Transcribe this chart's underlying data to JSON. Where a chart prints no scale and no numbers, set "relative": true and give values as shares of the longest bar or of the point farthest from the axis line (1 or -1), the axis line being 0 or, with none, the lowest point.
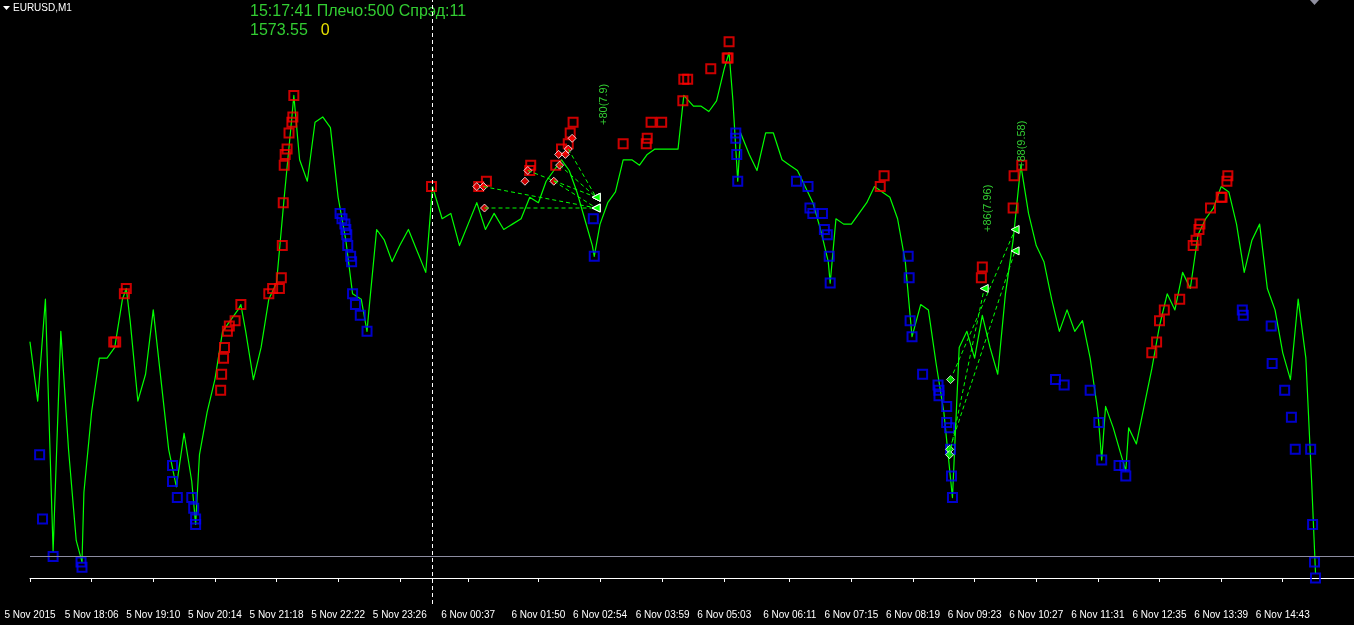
{
  "chart_data": {
    "type": "line",
    "title": "EURUSD,M1",
    "annotations": [
      "15:17:41 Плечо:500 Спрэд:11",
      "1573.55",
      "0",
      "+80(7.9)",
      "+86(7.96)",
      "+88(9.58)"
    ],
    "relative": true,
    "xlim": [
      "2015-11-05T17:02",
      "2015-11-06T15:57"
    ],
    "xticks": [
      {
        "value": "2015-11-05T17:02",
        "label": "5 Nov 2015"
      },
      {
        "value": "2015-11-05T18:06",
        "label": "5 Nov 18:06"
      },
      {
        "value": "2015-11-05T19:10",
        "label": "5 Nov 19:10"
      },
      {
        "value": "2015-11-05T20:14",
        "label": "5 Nov 20:14"
      },
      {
        "value": "2015-11-05T21:18",
        "label": "5 Nov 21:18"
      },
      {
        "value": "2015-11-05T22:22",
        "label": "5 Nov 22:22"
      },
      {
        "value": "2015-11-05T23:26",
        "label": "5 Nov 23:26"
      },
      {
        "value": "2015-11-06T00:37",
        "label": "6 Nov 00:37"
      },
      {
        "value": "2015-11-06T01:50",
        "label": "6 Nov 01:50"
      },
      {
        "value": "2015-11-06T02:54",
        "label": "6 Nov 02:54"
      },
      {
        "value": "2015-11-06T03:59",
        "label": "6 Nov 03:59"
      },
      {
        "value": "2015-11-06T05:03",
        "label": "6 Nov 05:03"
      },
      {
        "value": "2015-11-06T06:11",
        "label": "6 Nov 06:11"
      },
      {
        "value": "2015-11-06T07:15",
        "label": "6 Nov 07:15"
      },
      {
        "value": "2015-11-06T08:19",
        "label": "6 Nov 08:19"
      },
      {
        "value": "2015-11-06T09:23",
        "label": "6 Nov 09:23"
      },
      {
        "value": "2015-11-06T10:27",
        "label": "6 Nov 10:27"
      },
      {
        "value": "2015-11-06T11:31",
        "label": "6 Nov 11:31"
      },
      {
        "value": "2015-11-06T12:35",
        "label": "6 Nov 12:35"
      },
      {
        "value": "2015-11-06T13:39",
        "label": "6 Nov 13:39"
      },
      {
        "value": "2015-11-06T14:43",
        "label": "6 Nov 14:43"
      }
    ],
    "ref_lines": [
      {
        "axis": "x",
        "value": "2015-11-06T00:00",
        "color": "#ffffff",
        "line_style": "dashed"
      },
      {
        "axis": "y",
        "value": 0.04,
        "color": "#8c8ca0",
        "line_style": "solid"
      }
    ],
    "series": [
      {
        "color": "#00ff00",
        "marker": "none",
        "line_style": "solid",
        "x": [
          "2015-11-05T17:02",
          "2015-11-05T17:10",
          "2015-11-05T17:18",
          "2015-11-05T17:26",
          "2015-11-05T17:34",
          "2015-11-05T17:42",
          "2015-11-05T17:50",
          "2015-11-05T17:56",
          "2015-11-05T17:58",
          "2015-11-05T18:06",
          "2015-11-05T18:14",
          "2015-11-05T18:22",
          "2015-11-05T18:30",
          "2015-11-05T18:38",
          "2015-11-05T18:42",
          "2015-11-05T18:46",
          "2015-11-05T18:54",
          "2015-11-05T19:02",
          "2015-11-05T19:10",
          "2015-11-05T19:18",
          "2015-11-05T19:26",
          "2015-11-05T19:34",
          "2015-11-05T19:42",
          "2015-11-05T19:50",
          "2015-11-05T19:54",
          "2015-11-05T19:58",
          "2015-11-05T20:06",
          "2015-11-05T20:14",
          "2015-11-05T20:22",
          "2015-11-05T20:30",
          "2015-11-05T20:38",
          "2015-11-05T20:41",
          "2015-11-05T20:46",
          "2015-11-05T20:54",
          "2015-11-05T21:02",
          "2015-11-05T21:10",
          "2015-11-05T21:18",
          "2015-11-05T21:26",
          "2015-11-05T21:34",
          "2015-11-05T21:36",
          "2015-11-05T21:42",
          "2015-11-05T21:50",
          "2015-11-05T21:58",
          "2015-11-05T22:06",
          "2015-11-05T22:14",
          "2015-11-05T22:22",
          "2015-11-05T22:30",
          "2015-11-05T22:37",
          "2015-11-05T22:46",
          "2015-11-05T22:52",
          "2015-11-05T22:54",
          "2015-11-05T23:02",
          "2015-11-05T23:10",
          "2015-11-05T23:18",
          "2015-11-05T23:26",
          "2015-11-05T23:35",
          "2015-11-05T23:44",
          "2015-11-05T23:53",
          "2015-11-06T00:00",
          "2015-11-06T00:10",
          "2015-11-06T00:19",
          "2015-11-06T00:28",
          "2015-11-06T00:37",
          "2015-11-06T00:46",
          "2015-11-06T00:55",
          "2015-11-06T01:04",
          "2015-11-06T01:14",
          "2015-11-06T01:23",
          "2015-11-06T01:32",
          "2015-11-06T01:41",
          "2015-11-06T01:50",
          "2015-11-06T01:58",
          "2015-11-06T02:06",
          "2015-11-06T02:14",
          "2015-11-06T02:22",
          "2015-11-06T02:30",
          "2015-11-06T02:38",
          "2015-11-06T02:46",
          "2015-11-06T02:48",
          "2015-11-06T02:54",
          "2015-11-06T03:02",
          "2015-11-06T03:10",
          "2015-11-06T03:18",
          "2015-11-06T03:27",
          "2015-11-06T03:35",
          "2015-11-06T03:43",
          "2015-11-06T03:51",
          "2015-11-06T03:59",
          "2015-11-06T04:07",
          "2015-11-06T04:15",
          "2015-11-06T04:21",
          "2015-11-06T04:31",
          "2015-11-06T04:39",
          "2015-11-06T04:47",
          "2015-11-06T04:55",
          "2015-11-06T05:03",
          "2015-11-06T05:08",
          "2015-11-06T05:12",
          "2015-11-06T05:17",
          "2015-11-06T05:20",
          "2015-11-06T05:29",
          "2015-11-06T05:37",
          "2015-11-06T05:46",
          "2015-11-06T05:54",
          "2015-11-06T06:03",
          "2015-11-06T06:11",
          "2015-11-06T06:19",
          "2015-11-06T06:27",
          "2015-11-06T06:35",
          "2015-11-06T06:43",
          "2015-11-06T06:51",
          "2015-11-06T06:53",
          "2015-11-06T06:59",
          "2015-11-06T07:07",
          "2015-11-06T07:15",
          "2015-11-06T07:23",
          "2015-11-06T07:31",
          "2015-11-06T07:39",
          "2015-11-06T07:47",
          "2015-11-06T07:55",
          "2015-11-06T08:03",
          "2015-11-06T08:11",
          "2015-11-06T08:18",
          "2015-11-06T08:27",
          "2015-11-06T08:35",
          "2015-11-06T08:43",
          "2015-11-06T08:51",
          "2015-11-06T09:00",
          "2015-11-06T09:07",
          "2015-11-06T09:15",
          "2015-11-06T09:23",
          "2015-11-06T09:31",
          "2015-11-06T09:39",
          "2015-11-06T09:47",
          "2015-11-06T09:55",
          "2015-11-06T10:03",
          "2015-11-06T10:11",
          "2015-11-06T10:19",
          "2015-11-06T10:27",
          "2015-11-06T10:35",
          "2015-11-06T10:43",
          "2015-11-06T10:51",
          "2015-11-06T10:59",
          "2015-11-06T11:07",
          "2015-11-06T11:15",
          "2015-11-06T11:23",
          "2015-11-06T11:31",
          "2015-11-06T11:35",
          "2015-11-06T11:39",
          "2015-11-06T11:47",
          "2015-11-06T11:55",
          "2015-11-06T12:00",
          "2015-11-06T12:03",
          "2015-11-06T12:11",
          "2015-11-06T12:19",
          "2015-11-06T12:27",
          "2015-11-06T12:35",
          "2015-11-06T12:43",
          "2015-11-06T12:51",
          "2015-11-06T12:59",
          "2015-11-06T13:07",
          "2015-11-06T13:15",
          "2015-11-06T13:23",
          "2015-11-06T13:31",
          "2015-11-06T13:39",
          "2015-11-06T13:47",
          "2015-11-06T13:55",
          "2015-11-06T14:03",
          "2015-11-06T14:11",
          "2015-11-06T14:19",
          "2015-11-06T14:27",
          "2015-11-06T14:35",
          "2015-11-06T14:43",
          "2015-11-06T14:51",
          "2015-11-06T14:59",
          "2015-11-06T15:07",
          "2015-11-06T15:13",
          "2015-11-06T15:17"
        ],
        "values": [
          0.44,
          0.33,
          0.52,
          0.05,
          0.46,
          0.24,
          0.07,
          0.03,
          0.16,
          0.31,
          0.41,
          0.41,
          0.43,
          0.52,
          0.54,
          0.48,
          0.33,
          0.38,
          0.5,
          0.37,
          0.24,
          0.17,
          0.27,
          0.18,
          0.1,
          0.23,
          0.31,
          0.37,
          0.46,
          0.48,
          0.5,
          0.51,
          0.46,
          0.37,
          0.43,
          0.52,
          0.55,
          0.71,
          0.86,
          0.9,
          0.78,
          0.74,
          0.85,
          0.86,
          0.84,
          0.71,
          0.63,
          0.53,
          0.52,
          0.46,
          0.5,
          0.65,
          0.63,
          0.59,
          0.62,
          0.65,
          0.61,
          0.57,
          0.73,
          0.67,
          0.68,
          0.62,
          0.66,
          0.7,
          0.65,
          0.68,
          0.65,
          0.66,
          0.67,
          0.71,
          0.7,
          0.74,
          0.76,
          0.78,
          0.76,
          0.72,
          0.67,
          0.62,
          0.6,
          0.66,
          0.7,
          0.72,
          0.78,
          0.78,
          0.77,
          0.79,
          0.8,
          0.8,
          0.8,
          0.8,
          0.9,
          0.88,
          0.88,
          0.87,
          0.89,
          0.95,
          0.98,
          0.89,
          0.74,
          0.83,
          0.79,
          0.76,
          0.83,
          0.83,
          0.78,
          0.77,
          0.76,
          0.73,
          0.7,
          0.65,
          0.59,
          0.55,
          0.67,
          0.66,
          0.66,
          0.68,
          0.7,
          0.73,
          0.72,
          0.71,
          0.67,
          0.59,
          0.45,
          0.51,
          0.5,
          0.4,
          0.31,
          0.15,
          0.43,
          0.46,
          0.41,
          0.49,
          0.43,
          0.38,
          0.53,
          0.63,
          0.77,
          0.68,
          0.62,
          0.59,
          0.52,
          0.46,
          0.5,
          0.46,
          0.48,
          0.41,
          0.31,
          0.22,
          0.32,
          0.28,
          0.23,
          0.2,
          0.28,
          0.25,
          0.32,
          0.39,
          0.47,
          0.53,
          0.5,
          0.57,
          0.54,
          0.64,
          0.67,
          0.69,
          0.73,
          0.72,
          0.66,
          0.57,
          0.63,
          0.66,
          0.54,
          0.5,
          0.42,
          0.37,
          0.52,
          0.41,
          0.18,
          0.01
        ]
      },
      {
        "type": "scatter",
        "color": "#ff0000",
        "marker": "square",
        "x": [
          "2015-11-05T18:29",
          "2015-11-05T18:31",
          "2015-11-05T18:40",
          "2015-11-05T18:42",
          "2015-11-05T20:20",
          "2015-11-05T20:21",
          "2015-11-05T20:23",
          "2015-11-05T20:24",
          "2015-11-05T20:27",
          "2015-11-05T20:29",
          "2015-11-05T20:35",
          "2015-11-05T20:41",
          "2015-11-05T21:10",
          "2015-11-05T21:14",
          "2015-11-05T21:21",
          "2015-11-05T21:23",
          "2015-11-05T21:24",
          "2015-11-05T21:25",
          "2015-11-05T21:26",
          "2015-11-05T21:27",
          "2015-11-05T21:29",
          "2015-11-05T21:31",
          "2015-11-05T21:34",
          "2015-11-05T21:35",
          "2015-11-05T21:36",
          "2015-11-05T23:59",
          "2015-11-06T00:48",
          "2015-11-06T00:56",
          "2015-11-06T01:41",
          "2015-11-06T01:42",
          "2015-11-06T02:08",
          "2015-11-06T02:14",
          "2015-11-06T02:21",
          "2015-11-06T02:23",
          "2015-11-06T02:26",
          "2015-11-06T03:18",
          "2015-11-06T03:42",
          "2015-11-06T03:43",
          "2015-11-06T03:47",
          "2015-11-06T03:58",
          "2015-11-06T04:20",
          "2015-11-06T04:21",
          "2015-11-06T04:25",
          "2015-11-06T04:49",
          "2015-11-06T05:06",
          "2015-11-06T05:07",
          "2015-11-06T05:08",
          "2015-11-06T07:45",
          "2015-11-06T07:49",
          "2015-11-06T09:30",
          "2015-11-06T09:31",
          "2015-11-06T10:03",
          "2015-11-06T10:04",
          "2015-11-06T10:12",
          "2015-11-06T12:27",
          "2015-11-06T12:32",
          "2015-11-06T12:35",
          "2015-11-06T12:40",
          "2015-11-06T12:56",
          "2015-11-06T13:09",
          "2015-11-06T13:10",
          "2015-11-06T13:13",
          "2015-11-06T13:16",
          "2015-11-06T13:17",
          "2015-11-06T13:28",
          "2015-11-06T13:39",
          "2015-11-06T13:40",
          "2015-11-06T13:45",
          "2015-11-06T13:46"
        ],
        "values": [
          0.44,
          0.44,
          0.53,
          0.54,
          0.35,
          0.38,
          0.41,
          0.43,
          0.46,
          0.47,
          0.48,
          0.51,
          0.53,
          0.54,
          0.54,
          0.56,
          0.62,
          0.7,
          0.77,
          0.79,
          0.8,
          0.83,
          0.85,
          0.86,
          0.9,
          0.73,
          0.73,
          0.74,
          0.76,
          0.77,
          0.77,
          0.8,
          0.81,
          0.83,
          0.85,
          0.81,
          0.81,
          0.82,
          0.85,
          0.85,
          0.89,
          0.93,
          0.93,
          0.95,
          0.97,
          0.97,
          1,
          0.73,
          0.75,
          0.56,
          0.58,
          0.69,
          0.75,
          0.77,
          0.42,
          0.44,
          0.48,
          0.5,
          0.52,
          0.55,
          0.62,
          0.63,
          0.65,
          0.66,
          0.69,
          0.71,
          0.71,
          0.74,
          0.75
        ]
      },
      {
        "type": "scatter",
        "color": "#0000ff",
        "marker": "square",
        "x": [
          "2015-11-05T17:12",
          "2015-11-05T17:15",
          "2015-11-05T17:26",
          "2015-11-05T17:55",
          "2015-11-05T17:56",
          "2015-11-05T19:30",
          "2015-11-05T19:30",
          "2015-11-05T19:35",
          "2015-11-05T19:50",
          "2015-11-05T19:52",
          "2015-11-05T19:54",
          "2015-11-05T19:54",
          "2015-11-05T22:24",
          "2015-11-05T22:26",
          "2015-11-05T22:29",
          "2015-11-05T22:30",
          "2015-11-05T22:31",
          "2015-11-05T22:32",
          "2015-11-05T22:35",
          "2015-11-05T22:36",
          "2015-11-05T22:37",
          "2015-11-05T22:40",
          "2015-11-05T22:45",
          "2015-11-05T22:52",
          "2015-11-06T02:47",
          "2015-11-06T02:48",
          "2015-11-06T05:15",
          "2015-11-06T05:15",
          "2015-11-06T05:16",
          "2015-11-06T05:17",
          "2015-11-06T06:18",
          "2015-11-06T06:30",
          "2015-11-06T06:32",
          "2015-11-06T06:35",
          "2015-11-06T06:45",
          "2015-11-06T06:47",
          "2015-11-06T06:50",
          "2015-11-06T06:52",
          "2015-11-06T06:53",
          "2015-11-06T08:14",
          "2015-11-06T08:15",
          "2015-11-06T08:16",
          "2015-11-06T08:18",
          "2015-11-06T08:29",
          "2015-11-06T08:45",
          "2015-11-06T08:46",
          "2015-11-06T08:46",
          "2015-11-06T08:54",
          "2015-11-06T08:54",
          "2015-11-06T08:57",
          "2015-11-06T08:58",
          "2015-11-06T08:59",
          "2015-11-06T09:00",
          "2015-11-06T10:47",
          "2015-11-06T10:56",
          "2015-11-06T11:23",
          "2015-11-06T11:32",
          "2015-11-06T11:35",
          "2015-11-06T11:53",
          "2015-11-06T11:59",
          "2015-11-06T12:00",
          "2015-11-06T14:01",
          "2015-11-06T14:02",
          "2015-11-06T14:31",
          "2015-11-06T14:32",
          "2015-11-06T14:45",
          "2015-11-06T14:52",
          "2015-11-06T14:56",
          "2015-11-06T15:12",
          "2015-11-06T15:14",
          "2015-11-06T15:16",
          "2015-11-06T15:17"
        ],
        "values": [
          0.23,
          0.11,
          0.04,
          0.03,
          0.02,
          0.21,
          0.18,
          0.15,
          0.15,
          0.13,
          0.11,
          0.1,
          0.68,
          0.67,
          0.66,
          0.65,
          0.64,
          0.62,
          0.6,
          0.59,
          0.53,
          0.51,
          0.49,
          0.46,
          0.67,
          0.6,
          0.83,
          0.82,
          0.79,
          0.74,
          0.74,
          0.73,
          0.69,
          0.68,
          0.68,
          0.65,
          0.64,
          0.6,
          0.55,
          0.6,
          0.56,
          0.48,
          0.45,
          0.38,
          0.36,
          0.35,
          0.34,
          0.32,
          0.29,
          0.28,
          0.24,
          0.19,
          0.15,
          0.37,
          0.36,
          0.35,
          0.29,
          0.22,
          0.21,
          0.21,
          0.19,
          0.5,
          0.49,
          0.47,
          0.4,
          0.35,
          0.3,
          0.24,
          0.24,
          0.1,
          0.03,
          0
        ]
      },
      {
        "type": "scatter",
        "color": "#ff0000",
        "marker": "diamond",
        "x": [
          "2015-11-06T00:46",
          "2015-11-06T00:53",
          "2015-11-06T00:54",
          "2015-11-06T01:36",
          "2015-11-06T01:39",
          "2015-11-06T02:06",
          "2015-11-06T02:11",
          "2015-11-06T02:12",
          "2015-11-06T02:18",
          "2015-11-06T02:21",
          "2015-11-06T02:25"
        ],
        "values": [
          0.73,
          0.73,
          0.69,
          0.74,
          0.76,
          0.74,
          0.79,
          0.77,
          0.79,
          0.8,
          0.82
        ]
      },
      {
        "type": "scatter",
        "color": "#00ff00",
        "marker": "diamond",
        "x": [
          "2015-11-06T08:57",
          "2015-11-06T08:57",
          "2015-11-06T08:58"
        ],
        "values": [
          0.24,
          0.23,
          0.37
        ]
      }
    ]
  }
}
